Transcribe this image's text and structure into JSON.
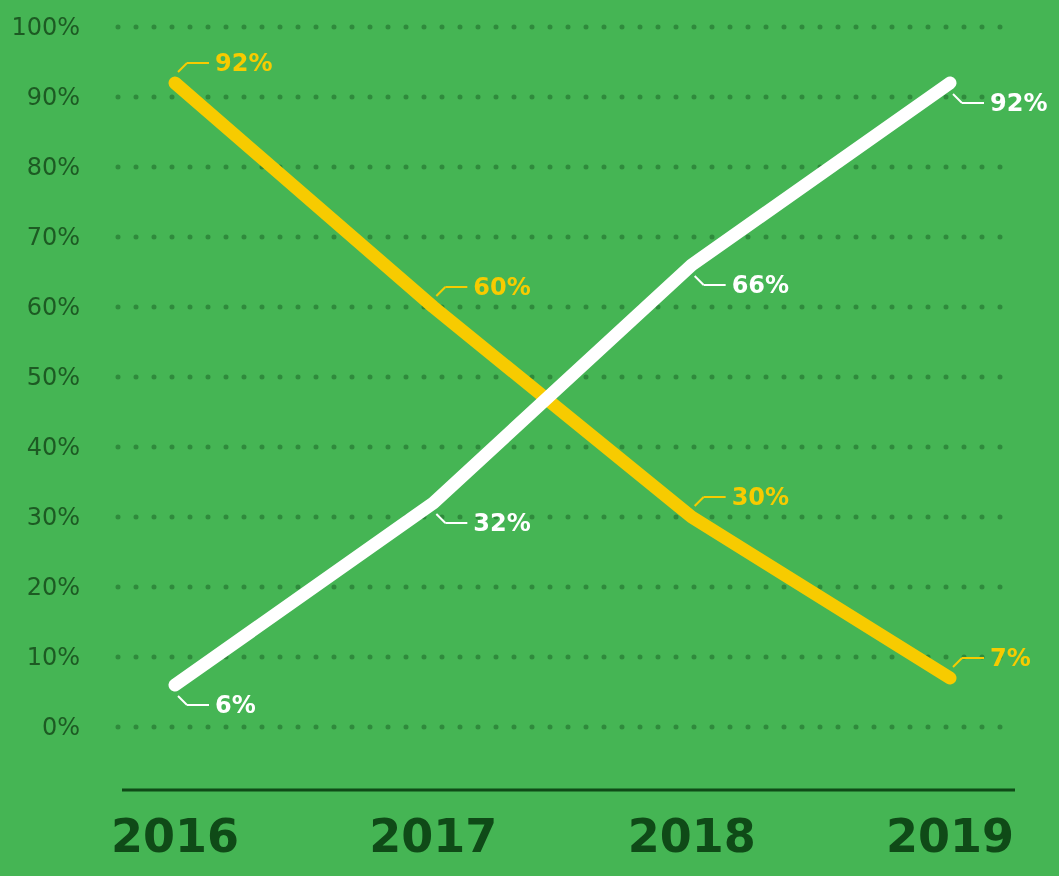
{
  "chart_data": {
    "type": "line",
    "categories": [
      "2016",
      "2017",
      "2018",
      "2019"
    ],
    "series": [
      {
        "color": "#f7cb00",
        "values": [
          92,
          60,
          30,
          7
        ],
        "value_labels": [
          "92%",
          "60%",
          "30%",
          "7%"
        ]
      },
      {
        "color": "#ffffff",
        "values": [
          6,
          32,
          66,
          92
        ],
        "value_labels": [
          "6%",
          "32%",
          "66%",
          "92%"
        ]
      }
    ],
    "ylim": [
      0,
      100
    ],
    "yticks": [
      {
        "value": 0,
        "label": "0%"
      },
      {
        "value": 10,
        "label": "10%"
      },
      {
        "value": 20,
        "label": "20%"
      },
      {
        "value": 30,
        "label": "30%"
      },
      {
        "value": 40,
        "label": "40%"
      },
      {
        "value": 50,
        "label": "50%"
      },
      {
        "value": 60,
        "label": "60%"
      },
      {
        "value": 70,
        "label": "70%"
      },
      {
        "value": 80,
        "label": "80%"
      },
      {
        "value": 90,
        "label": "90%"
      },
      {
        "value": 100,
        "label": "100%"
      }
    ],
    "grid": "y"
  }
}
